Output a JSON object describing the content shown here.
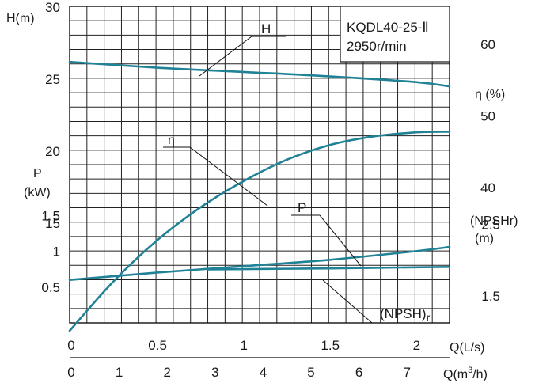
{
  "chart_data": {
    "type": "line",
    "title": "KQDL40-25-Ⅱ",
    "subtitle": "2950r/min",
    "colors": {
      "curve": "#1f8296",
      "grid": "#222222",
      "text": "#1a1a1a"
    },
    "x_axis_ls": {
      "label": "Q(L/s)",
      "range": [
        0,
        2.2
      ],
      "ticks": [
        {
          "v": 0,
          "t": "0"
        },
        {
          "v": 0.5,
          "t": "0.5"
        },
        {
          "v": 1,
          "t": "1"
        },
        {
          "v": 1.5,
          "t": "1.5"
        },
        {
          "v": 2,
          "t": "2"
        }
      ]
    },
    "x_axis_m3h": {
      "label": "Q(m³/h)",
      "range": [
        0,
        7.92
      ],
      "ticks": [
        {
          "v": 0,
          "t": "0"
        },
        {
          "v": 1,
          "t": "1"
        },
        {
          "v": 2,
          "t": "2"
        },
        {
          "v": 3,
          "t": "3"
        },
        {
          "v": 4,
          "t": "4"
        },
        {
          "v": 5,
          "t": "5"
        },
        {
          "v": 6,
          "t": "6"
        },
        {
          "v": 7,
          "t": "7"
        }
      ]
    },
    "y_axis_head": {
      "label": "H(m)",
      "range": [
        15,
        35
      ],
      "ticks": [
        {
          "v": 15,
          "t": "15"
        },
        {
          "v": 20,
          "t": "20"
        },
        {
          "v": 25,
          "t": "25"
        },
        {
          "v": 30,
          "t": "30"
        }
      ]
    },
    "y_axis_power": {
      "label_line1": "P",
      "label_line2": "(kW)",
      "range": [
        0,
        2
      ],
      "ticks": [
        {
          "v": 0.5,
          "t": "0.5"
        },
        {
          "v": 1,
          "t": "1"
        },
        {
          "v": 1.5,
          "t": "1.5"
        }
      ]
    },
    "y_axis_eff": {
      "label": "η (%)",
      "range": [
        20,
        60
      ],
      "ticks": [
        {
          "v": 40,
          "t": "40"
        },
        {
          "v": 50,
          "t": "50"
        },
        {
          "v": 60,
          "t": "60"
        }
      ]
    },
    "y_axis_npsh": {
      "label_line1": "(NPSHr)",
      "label_line2": "(m)",
      "range": [
        1.5,
        2.5
      ],
      "ticks": [
        {
          "v": 1.5,
          "t": "1.5"
        },
        {
          "v": 2.5,
          "t": "2.5"
        }
      ]
    },
    "series": [
      {
        "name": "H",
        "axis": "head",
        "x": [
          0,
          0.5,
          1.0,
          1.5,
          2.0,
          2.2
        ],
        "y": [
          26.2,
          25.8,
          25.5,
          25.2,
          24.8,
          24.5
        ]
      },
      {
        "name": "η",
        "axis": "eff",
        "x": [
          0,
          0.25,
          0.5,
          0.75,
          1.0,
          1.25,
          1.5,
          1.75,
          2.0,
          2.2
        ],
        "y": [
          20.0,
          26.8,
          32.5,
          37.1,
          40.8,
          43.8,
          45.9,
          47.1,
          47.7,
          47.8
        ]
      },
      {
        "name": "P",
        "axis": "power",
        "x": [
          0,
          0.5,
          1.0,
          1.5,
          2.0,
          2.2
        ],
        "y": [
          0.6,
          0.7,
          0.79,
          0.88,
          1.0,
          1.06
        ]
      },
      {
        "name": "(NPSH)r",
        "axis": "npsh",
        "x": [
          0.8,
          1.0,
          1.5,
          2.0,
          2.2
        ],
        "y": [
          1.87,
          1.875,
          1.885,
          1.9,
          1.905
        ]
      }
    ],
    "grid": true
  }
}
